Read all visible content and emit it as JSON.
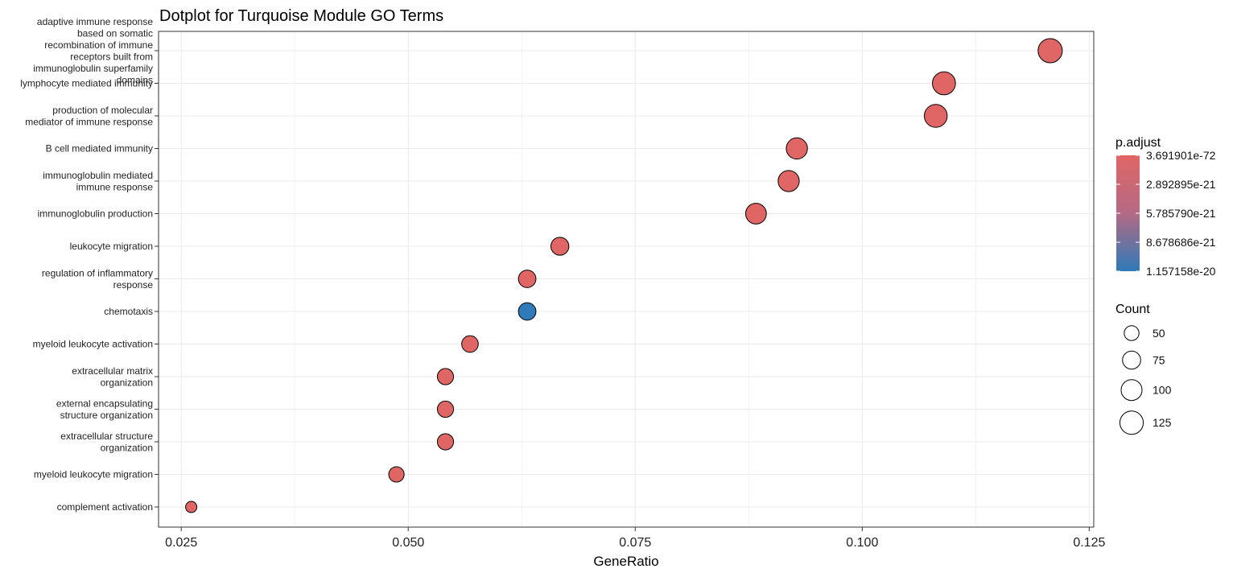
{
  "chart_data": {
    "type": "scatter",
    "title": "Dotplot for Turquoise Module GO Terms",
    "xlabel": "GeneRatio",
    "ylabel": "",
    "xlim": [
      0.0225,
      0.1255
    ],
    "xticks": [
      0.025,
      0.05,
      0.075,
      0.1,
      0.125
    ],
    "xtick_labels": [
      "0.025",
      "0.050",
      "0.075",
      "0.100",
      "0.125"
    ],
    "grid": true,
    "legend_position": "right",
    "categories": [
      "adaptive immune response\nbased on somatic\nrecombination of immune\nreceptors built from\nimmunoglobulin superfamily\ndomains",
      "lymphocyte mediated immunity",
      "production of molecular\nmediator of immune response",
      "B cell mediated immunity",
      "immunoglobulin mediated\nimmune response",
      "immunoglobulin production",
      "leukocyte migration",
      "regulation of inflammatory\nresponse",
      "chemotaxis",
      "myeloid leukocyte activation",
      "extracellular matrix\norganization",
      "external encapsulating\nstructure organization",
      "extracellular structure\norganization",
      "myeloid leukocyte migration",
      "complement activation"
    ],
    "points": [
      {
        "x": 0.1207,
        "count": 134,
        "p_adjust": 3.7e-72
      },
      {
        "x": 0.109,
        "count": 121,
        "p_adjust": 5e-60
      },
      {
        "x": 0.1081,
        "count": 120,
        "p_adjust": 1e-50
      },
      {
        "x": 0.0928,
        "count": 103,
        "p_adjust": 1e-45
      },
      {
        "x": 0.0919,
        "count": 102,
        "p_adjust": 1e-44
      },
      {
        "x": 0.0883,
        "count": 98,
        "p_adjust": 1e-40
      },
      {
        "x": 0.0667,
        "count": 74,
        "p_adjust": 1e-30
      },
      {
        "x": 0.0631,
        "count": 70,
        "p_adjust": 1e-25
      },
      {
        "x": 0.0631,
        "count": 70,
        "p_adjust": 1.157158e-20
      },
      {
        "x": 0.0568,
        "count": 63,
        "p_adjust": 1e-28
      },
      {
        "x": 0.0541,
        "count": 60,
        "p_adjust": 1e-26
      },
      {
        "x": 0.0541,
        "count": 60,
        "p_adjust": 1e-26
      },
      {
        "x": 0.0541,
        "count": 60,
        "p_adjust": 1e-26
      },
      {
        "x": 0.0487,
        "count": 54,
        "p_adjust": 1e-27
      },
      {
        "x": 0.0261,
        "count": 29,
        "p_adjust": 1e-30
      }
    ],
    "color_legend": {
      "title": "p.adjust",
      "labels": [
        "3.691901e-72",
        "2.892895e-21",
        "5.785790e-21",
        "8.678686e-21",
        "1.157158e-20"
      ],
      "values": [
        3.691901e-72,
        2.892895e-21,
        5.78579e-21,
        8.678686e-21,
        1.157158e-20
      ],
      "low_color": "#e06666",
      "high_color": "#2f7ab8"
    },
    "size_legend": {
      "title": "Count",
      "labels": [
        "50",
        "75",
        "100",
        "125"
      ],
      "values": [
        50,
        75,
        100,
        125
      ]
    }
  }
}
